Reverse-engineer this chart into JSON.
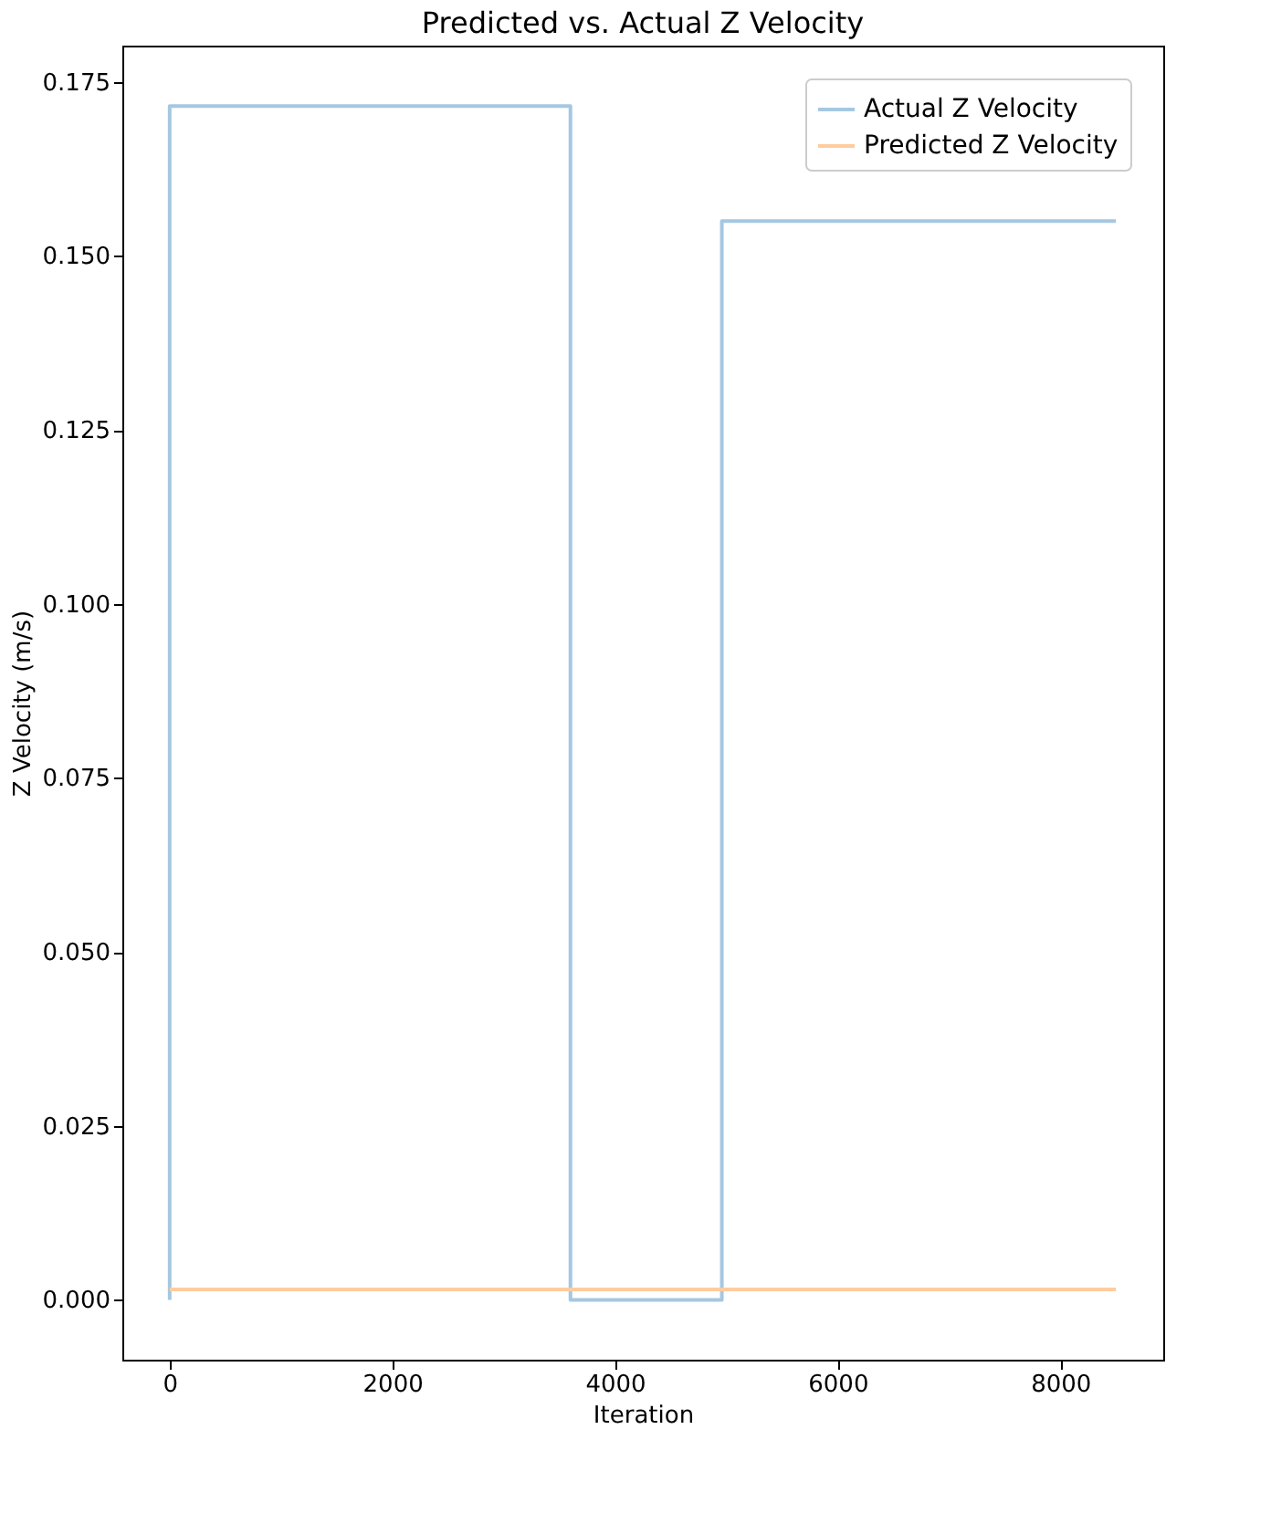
{
  "chart_data": {
    "type": "line",
    "title": "Predicted vs. Actual Z Velocity",
    "xlabel": "Iteration",
    "ylabel": "Z Velocity (m/s)",
    "series": [
      {
        "name": "Actual Z Velocity",
        "color": "#a5c8e1",
        "x": [
          0,
          0,
          3600,
          3600,
          4960,
          4960,
          8500
        ],
        "values": [
          0,
          0.1715,
          0.1715,
          0,
          0,
          0.155,
          0.155
        ]
      },
      {
        "name": "Predicted Z Velocity",
        "color": "#ffcc9f",
        "x": [
          0,
          8500
        ],
        "values": [
          0.0015,
          0.0015
        ]
      }
    ],
    "xlim": [
      -425,
      8925
    ],
    "xticks": [
      0,
      {
        "value": 2000,
        "label": "2000"
      },
      {
        "value": 4000,
        "label": "4000"
      },
      {
        "value": 6000,
        "label": "6000"
      },
      {
        "value": 8000,
        "label": "8000"
      }
    ],
    "ylim": [
      -0.0086,
      0.1802
    ],
    "yticks": [
      {
        "value": 0,
        "label": "0.000"
      },
      0.025,
      {
        "value": 0.05,
        "label": "0.050"
      },
      0.075,
      {
        "value": 0.1,
        "label": "0.100"
      },
      0.125,
      {
        "value": 0.15,
        "label": "0.150"
      },
      0.175
    ],
    "legend": "top right",
    "grid": false,
    "line_style": "solid",
    "marker": "none"
  }
}
